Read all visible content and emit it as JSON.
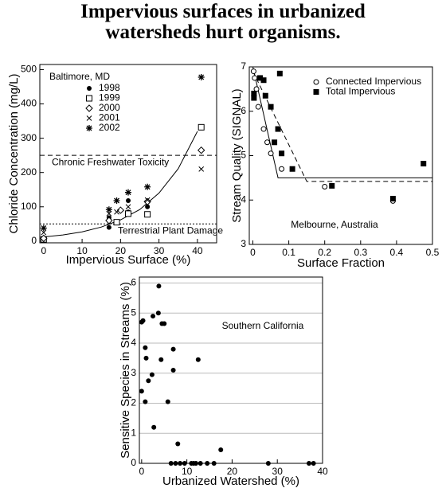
{
  "title": "Impervious surfaces in urbanized watersheds hurt organisms.",
  "chart_data": [
    {
      "type": "scatter",
      "annotation": "Baltimore, MD",
      "x_label": "Impervious Surface (%)",
      "y_label": "Chloride Concentration (mg/L)",
      "xlim": [
        -1,
        45
      ],
      "ylim": [
        -5,
        515
      ],
      "xticks": [
        0,
        10,
        20,
        30,
        40
      ],
      "yticks": [
        0,
        100,
        200,
        300,
        400,
        500
      ],
      "legend": "upper left",
      "grid": false,
      "series": [
        {
          "name": "1998",
          "marker": "dot",
          "color": "#000000",
          "x": [
            0,
            17,
            17,
            22,
            22,
            27
          ],
          "values": [
            3,
            68,
            40,
            118,
            85,
            100
          ]
        },
        {
          "name": "1999",
          "marker": "square",
          "color": "#000000",
          "x": [
            0,
            19,
            22,
            27,
            41
          ],
          "values": [
            5,
            55,
            80,
            78,
            332
          ]
        },
        {
          "name": "2000",
          "marker": "diamond",
          "color": "#000000",
          "x": [
            0,
            17,
            20,
            27,
            41
          ],
          "values": [
            8,
            60,
            90,
            115,
            265
          ]
        },
        {
          "name": "2001",
          "marker": "x",
          "color": "#000000",
          "x": [
            0,
            17,
            19,
            22,
            27,
            41
          ],
          "values": [
            25,
            80,
            85,
            100,
            120,
            210
          ]
        },
        {
          "name": "2002",
          "marker": "star",
          "color": "#000000",
          "x": [
            0,
            17,
            19,
            22,
            27,
            41
          ],
          "values": [
            38,
            92,
            118,
            142,
            158,
            478
          ]
        }
      ],
      "lines": [
        {
          "style": "solid",
          "color": "#000000",
          "x": [
            0,
            5,
            10,
            15,
            20,
            25,
            30,
            35,
            40
          ],
          "values": [
            12,
            18,
            27,
            41,
            62,
            92,
            140,
            211,
            320
          ]
        }
      ],
      "hlines": [
        {
          "value": 250,
          "label": "Chronic Freshwater Toxicity",
          "style": "dashed"
        },
        {
          "value": 50,
          "label": "Terrestrial Plant Damage",
          "style": "dotted"
        }
      ]
    },
    {
      "type": "scatter",
      "annotation": "Melbourne, Australia",
      "x_label": "Surface Fraction",
      "y_label": "Stream Quality (SIGNAL)",
      "xlim": [
        -0.01,
        0.5
      ],
      "ylim": [
        3,
        7
      ],
      "xticks": [
        0,
        0.1,
        0.2,
        0.3,
        0.4,
        0.5
      ],
      "yticks": [
        3,
        4,
        5,
        6,
        7
      ],
      "legend": "upper right",
      "grid": false,
      "series": [
        {
          "name": "Connected Impervious",
          "marker": "circle",
          "color": "#000000",
          "x": [
            0.002,
            0.005,
            0.01,
            0.015,
            0.03,
            0.04,
            0.05,
            0.08,
            0.2,
            0.39
          ],
          "values": [
            6.9,
            6.75,
            6.5,
            6.1,
            5.6,
            5.3,
            5.05,
            4.7,
            4.3,
            3.98
          ]
        },
        {
          "name": "Total Impervious",
          "marker": "square-filled",
          "color": "#000000",
          "x": [
            0.003,
            0.003,
            0.02,
            0.03,
            0.035,
            0.05,
            0.06,
            0.075,
            0.07,
            0.08,
            0.11,
            0.22,
            0.39,
            0.475
          ],
          "values": [
            6.4,
            6.3,
            6.75,
            6.7,
            6.35,
            6.1,
            5.3,
            6.85,
            5.6,
            5.05,
            4.7,
            4.32,
            4.03,
            4.82
          ]
        }
      ],
      "lines": [
        {
          "style": "solid",
          "color": "#000000",
          "x": [
            0,
            0.07,
            0.5
          ],
          "values": [
            7,
            4.5,
            4.5
          ]
        },
        {
          "style": "dashed",
          "color": "#000000",
          "x": [
            0,
            0.15,
            0.5
          ],
          "values": [
            6.9,
            4.42,
            4.42
          ]
        }
      ]
    },
    {
      "type": "scatter",
      "annotation": "Southern California",
      "x_label": "Urbanized Watershed (%)",
      "y_label": "Sensitive Species in Streams (%)",
      "xlim": [
        -0.5,
        40
      ],
      "ylim": [
        0,
        6.2
      ],
      "xticks": [
        0,
        10,
        20,
        30,
        40
      ],
      "yticks": [
        0,
        1,
        2,
        3,
        4,
        5,
        6
      ],
      "grid": true,
      "series": [
        {
          "marker": "dot",
          "color": "#000000",
          "x": [
            0,
            0.3,
            3.8,
            0.8,
            1,
            1.5,
            2.3,
            2.5,
            3.7,
            4.3,
            4.5,
            5,
            0,
            0.8,
            2.7,
            5.8,
            7,
            7,
            8,
            12.5,
            17.5,
            6.5,
            7.5,
            8.5,
            9.5,
            11,
            11.5,
            12,
            13,
            14.5,
            16,
            28,
            37,
            38
          ],
          "values": [
            4.7,
            4.75,
            5.9,
            3.85,
            3.5,
            2.75,
            2.95,
            4.9,
            5,
            3.45,
            4.65,
            4.65,
            2.4,
            2.05,
            1.2,
            2.05,
            3.8,
            3.1,
            0.65,
            3.45,
            0.45,
            0,
            0,
            0,
            0,
            0,
            0,
            0,
            0,
            0,
            0,
            0,
            0,
            0
          ]
        }
      ]
    }
  ]
}
